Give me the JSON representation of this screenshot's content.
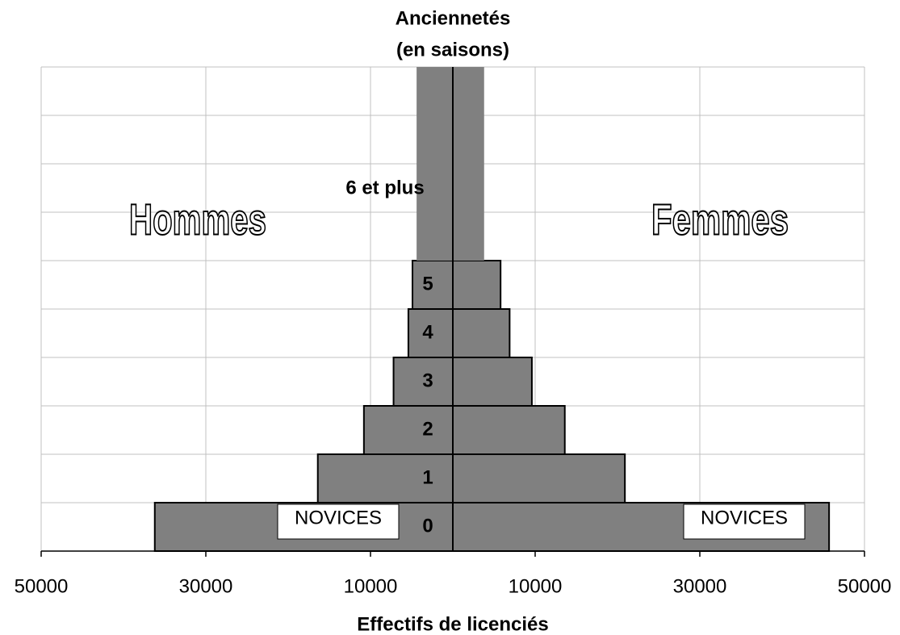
{
  "chart_data": {
    "type": "pyramid",
    "title": [
      "Anciennetés",
      "(en saisons)"
    ],
    "x_label": "Effectifs de licenciés",
    "categories": [
      "0",
      "1",
      "2",
      "3",
      "4",
      "5",
      "6 et plus"
    ],
    "series": [
      {
        "name": "Hommes",
        "color": "#808080",
        "values": [
          36200,
          16400,
          10800,
          7200,
          5400,
          4900,
          4400
        ]
      },
      {
        "name": "Femmes",
        "color": "#808080",
        "values": [
          45700,
          20900,
          13600,
          9600,
          6900,
          5800,
          3800
        ]
      }
    ],
    "annotations": [
      "NOVICES",
      "NOVICES"
    ],
    "xlim": [
      -50000,
      50000
    ],
    "xticks": [
      {
        "value": -50000,
        "label": "50000"
      },
      {
        "value": -30000,
        "label": "30000"
      },
      {
        "value": -10000,
        "label": "10000"
      },
      10000,
      30000,
      50000
    ],
    "grid": true
  }
}
